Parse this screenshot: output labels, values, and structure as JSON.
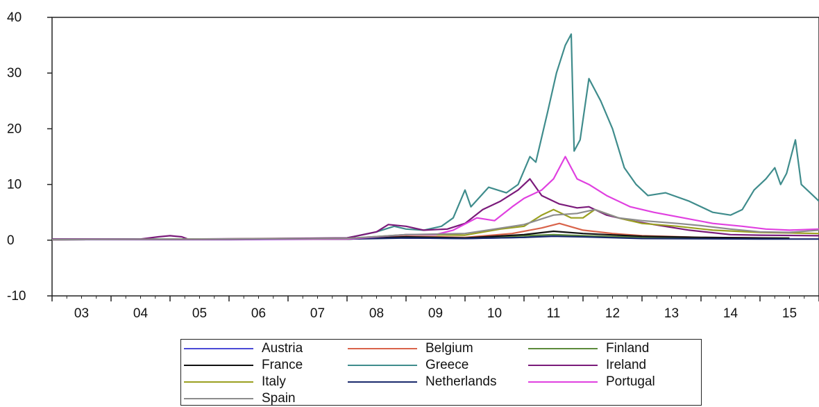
{
  "chart_data": {
    "type": "line",
    "title": "",
    "xlabel": "",
    "ylabel": "",
    "ylim": [
      -10,
      40
    ],
    "yticks": [
      "-10",
      "0",
      "10",
      "20",
      "30",
      "40"
    ],
    "xlim": [
      2003,
      2016
    ],
    "xticks": [
      "03",
      "04",
      "05",
      "06",
      "07",
      "08",
      "09",
      "10",
      "11",
      "12",
      "13",
      "14",
      "15"
    ],
    "grid": false,
    "legend_position": "bottom",
    "series": [
      {
        "name": "Austria",
        "color": "#4a4ad6",
        "points": [
          [
            2003.0,
            0.1
          ],
          [
            2006.0,
            0.1
          ],
          [
            2008.0,
            0.2
          ],
          [
            2008.7,
            0.5
          ],
          [
            2009.0,
            0.4
          ],
          [
            2010.0,
            0.3
          ],
          [
            2011.0,
            0.5
          ],
          [
            2011.5,
            0.9
          ],
          [
            2012.0,
            0.7
          ],
          [
            2013.0,
            0.4
          ],
          [
            2014.0,
            0.3
          ],
          [
            2015.0,
            0.3
          ],
          [
            2015.5,
            0.3
          ]
        ]
      },
      {
        "name": "Belgium",
        "color": "#d9634a",
        "points": [
          [
            2003.0,
            0.1
          ],
          [
            2008.0,
            0.2
          ],
          [
            2009.0,
            0.7
          ],
          [
            2010.0,
            0.5
          ],
          [
            2010.8,
            1.2
          ],
          [
            2011.3,
            2.2
          ],
          [
            2011.6,
            3.0
          ],
          [
            2012.0,
            1.8
          ],
          [
            2012.5,
            1.2
          ],
          [
            2013.0,
            0.8
          ],
          [
            2014.0,
            0.5
          ],
          [
            2015.0,
            0.4
          ],
          [
            2015.5,
            0.4
          ]
        ]
      },
      {
        "name": "Finland",
        "color": "#5b8a3a",
        "points": [
          [
            2003.0,
            0.1
          ],
          [
            2008.0,
            0.2
          ],
          [
            2008.7,
            0.5
          ],
          [
            2009.0,
            0.5
          ],
          [
            2010.0,
            0.4
          ],
          [
            2011.0,
            0.8
          ],
          [
            2011.5,
            1.0
          ],
          [
            2012.0,
            0.8
          ],
          [
            2013.0,
            0.5
          ],
          [
            2014.0,
            0.4
          ],
          [
            2015.0,
            0.4
          ],
          [
            2015.5,
            0.4
          ]
        ]
      },
      {
        "name": "France",
        "color": "#111111",
        "points": [
          [
            2003.0,
            0.1
          ],
          [
            2008.0,
            0.2
          ],
          [
            2009.0,
            0.6
          ],
          [
            2010.0,
            0.4
          ],
          [
            2011.0,
            1.0
          ],
          [
            2011.5,
            1.6
          ],
          [
            2012.0,
            1.2
          ],
          [
            2013.0,
            0.7
          ],
          [
            2014.0,
            0.5
          ],
          [
            2015.0,
            0.4
          ],
          [
            2015.5,
            0.3
          ]
        ]
      },
      {
        "name": "Greece",
        "color": "#3f8c8c",
        "points": [
          [
            2003.0,
            0.2
          ],
          [
            2006.0,
            0.2
          ],
          [
            2008.0,
            0.4
          ],
          [
            2008.5,
            1.5
          ],
          [
            2008.8,
            2.5
          ],
          [
            2009.0,
            2.0
          ],
          [
            2009.3,
            1.8
          ],
          [
            2009.6,
            2.5
          ],
          [
            2009.8,
            4.0
          ],
          [
            2010.0,
            9.0
          ],
          [
            2010.1,
            6.0
          ],
          [
            2010.4,
            9.5
          ],
          [
            2010.7,
            8.5
          ],
          [
            2010.9,
            10.0
          ],
          [
            2011.1,
            15.0
          ],
          [
            2011.2,
            14.0
          ],
          [
            2011.4,
            23.0
          ],
          [
            2011.55,
            30.0
          ],
          [
            2011.7,
            35.0
          ],
          [
            2011.8,
            37.0
          ],
          [
            2011.85,
            16.0
          ],
          [
            2011.95,
            18.0
          ],
          [
            2012.1,
            29.0
          ],
          [
            2012.3,
            25.0
          ],
          [
            2012.5,
            20.0
          ],
          [
            2012.7,
            13.0
          ],
          [
            2012.9,
            10.0
          ],
          [
            2013.1,
            8.0
          ],
          [
            2013.4,
            8.5
          ],
          [
            2013.8,
            7.0
          ],
          [
            2014.2,
            5.0
          ],
          [
            2014.5,
            4.5
          ],
          [
            2014.7,
            5.5
          ],
          [
            2014.9,
            9.0
          ],
          [
            2015.1,
            11.0
          ],
          [
            2015.25,
            13.0
          ],
          [
            2015.35,
            10.0
          ],
          [
            2015.45,
            12.0
          ],
          [
            2015.6,
            18.0
          ],
          [
            2015.7,
            10.0
          ],
          [
            2015.9,
            8.0
          ],
          [
            2016.0,
            7.0
          ]
        ]
      },
      {
        "name": "Ireland",
        "color": "#7a1a7a",
        "points": [
          [
            2003.0,
            0.2
          ],
          [
            2004.5,
            0.2
          ],
          [
            2004.8,
            0.6
          ],
          [
            2005.0,
            0.8
          ],
          [
            2005.2,
            0.6
          ],
          [
            2005.3,
            0.2
          ],
          [
            2008.0,
            0.4
          ],
          [
            2008.5,
            1.5
          ],
          [
            2008.7,
            2.8
          ],
          [
            2009.0,
            2.5
          ],
          [
            2009.3,
            1.8
          ],
          [
            2009.7,
            2.0
          ],
          [
            2010.0,
            3.0
          ],
          [
            2010.3,
            5.5
          ],
          [
            2010.6,
            7.0
          ],
          [
            2010.9,
            9.0
          ],
          [
            2011.1,
            11.0
          ],
          [
            2011.3,
            8.0
          ],
          [
            2011.6,
            6.5
          ],
          [
            2011.9,
            5.8
          ],
          [
            2012.1,
            6.0
          ],
          [
            2012.4,
            4.5
          ],
          [
            2012.8,
            3.5
          ],
          [
            2013.2,
            2.8
          ],
          [
            2013.8,
            1.8
          ],
          [
            2014.5,
            1.0
          ],
          [
            2015.0,
            0.9
          ],
          [
            2016.0,
            0.8
          ]
        ]
      },
      {
        "name": "Italy",
        "color": "#9aa020",
        "points": [
          [
            2003.0,
            0.1
          ],
          [
            2008.0,
            0.3
          ],
          [
            2009.0,
            1.0
          ],
          [
            2010.0,
            0.9
          ],
          [
            2010.6,
            2.0
          ],
          [
            2011.0,
            2.5
          ],
          [
            2011.3,
            4.5
          ],
          [
            2011.5,
            5.5
          ],
          [
            2011.8,
            4.0
          ],
          [
            2012.0,
            4.0
          ],
          [
            2012.2,
            5.5
          ],
          [
            2012.6,
            4.0
          ],
          [
            2013.0,
            3.0
          ],
          [
            2013.6,
            2.5
          ],
          [
            2014.2,
            1.8
          ],
          [
            2015.0,
            1.4
          ],
          [
            2016.0,
            1.2
          ]
        ]
      },
      {
        "name": "Netherlands",
        "color": "#1a2a6c",
        "points": [
          [
            2003.0,
            0.1
          ],
          [
            2008.0,
            0.2
          ],
          [
            2009.0,
            0.4
          ],
          [
            2010.0,
            0.3
          ],
          [
            2011.0,
            0.5
          ],
          [
            2011.5,
            0.7
          ],
          [
            2012.0,
            0.6
          ],
          [
            2013.0,
            0.3
          ],
          [
            2014.0,
            0.25
          ],
          [
            2015.0,
            0.2
          ],
          [
            2016.0,
            0.2
          ]
        ]
      },
      {
        "name": "Portugal",
        "color": "#e040e0",
        "points": [
          [
            2003.0,
            0.1
          ],
          [
            2008.0,
            0.2
          ],
          [
            2009.0,
            1.0
          ],
          [
            2009.5,
            1.0
          ],
          [
            2009.8,
            1.8
          ],
          [
            2010.2,
            4.0
          ],
          [
            2010.5,
            3.5
          ],
          [
            2010.8,
            6.0
          ],
          [
            2011.0,
            7.5
          ],
          [
            2011.3,
            9.0
          ],
          [
            2011.5,
            11.0
          ],
          [
            2011.7,
            15.0
          ],
          [
            2011.9,
            11.0
          ],
          [
            2012.1,
            10.0
          ],
          [
            2012.4,
            8.0
          ],
          [
            2012.8,
            6.0
          ],
          [
            2013.2,
            5.0
          ],
          [
            2013.7,
            4.0
          ],
          [
            2014.2,
            3.0
          ],
          [
            2014.7,
            2.5
          ],
          [
            2015.1,
            2.0
          ],
          [
            2015.5,
            1.8
          ],
          [
            2016.0,
            2.0
          ]
        ]
      },
      {
        "name": "Spain",
        "color": "#8c8c8c",
        "points": [
          [
            2003.0,
            0.1
          ],
          [
            2008.0,
            0.3
          ],
          [
            2009.0,
            1.0
          ],
          [
            2010.0,
            1.2
          ],
          [
            2010.5,
            2.0
          ],
          [
            2011.0,
            2.8
          ],
          [
            2011.5,
            4.5
          ],
          [
            2011.9,
            4.8
          ],
          [
            2012.2,
            5.5
          ],
          [
            2012.6,
            4.0
          ],
          [
            2013.0,
            3.5
          ],
          [
            2013.6,
            3.0
          ],
          [
            2014.0,
            2.6
          ],
          [
            2014.5,
            2.0
          ],
          [
            2015.0,
            1.5
          ],
          [
            2015.5,
            1.4
          ],
          [
            2016.0,
            1.8
          ]
        ]
      }
    ]
  }
}
